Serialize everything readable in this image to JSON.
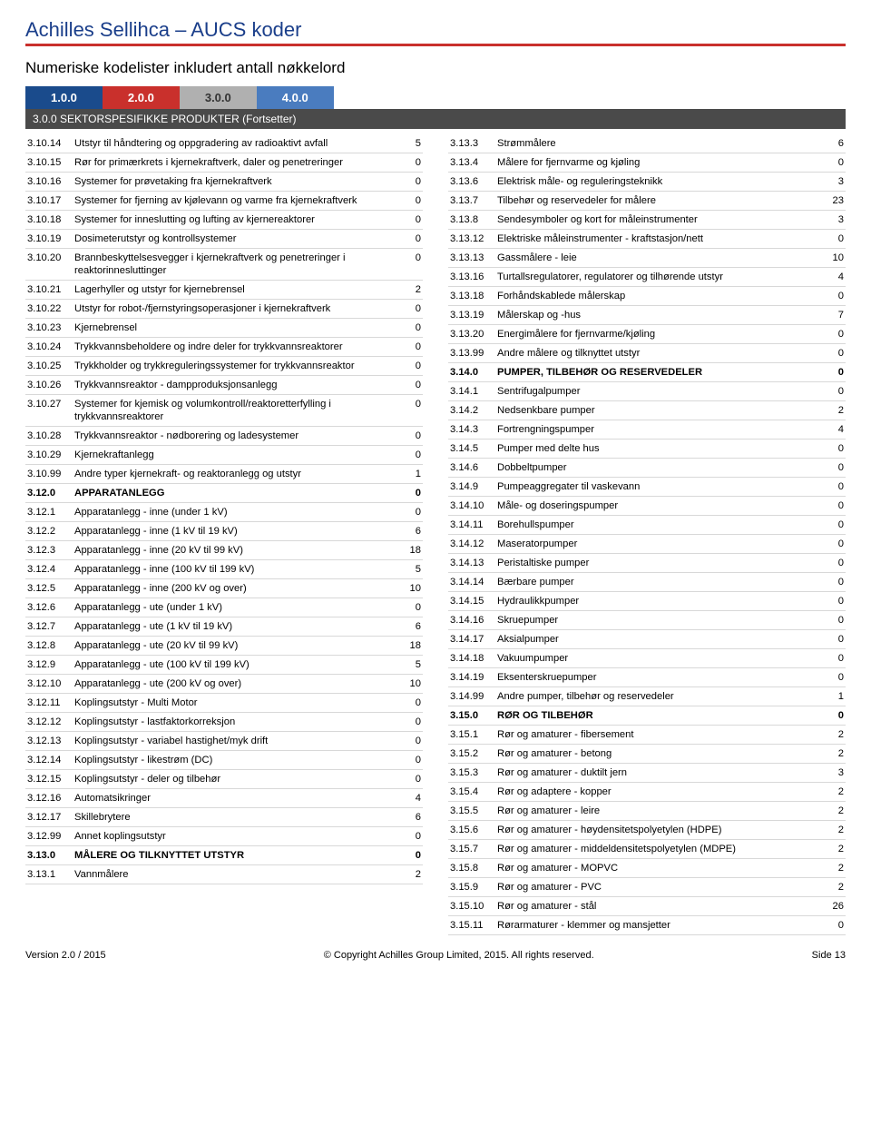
{
  "header": {
    "title": "Achilles Sellihca – AUCS koder",
    "subtitle": "Numeriske kodelister inkludert antall nøkkelord"
  },
  "tabs": [
    "1.0.0",
    "2.0.0",
    "3.0.0",
    "4.0.0"
  ],
  "section_header": "3.0.0 SEKTORSPESIFIKKE PRODUKTER (Fortsetter)",
  "left": [
    {
      "code": "3.10.14",
      "desc": "Utstyr til håndtering og oppgradering av radioaktivt avfall",
      "n": "5"
    },
    {
      "code": "3.10.15",
      "desc": "Rør for primærkrets i kjernekraftverk, daler og penetreringer",
      "n": "0"
    },
    {
      "code": "3.10.16",
      "desc": "Systemer for prøvetaking fra kjernekraftverk",
      "n": "0"
    },
    {
      "code": "3.10.17",
      "desc": "Systemer for fjerning av kjølevann og varme fra kjernekraftverk",
      "n": "0"
    },
    {
      "code": "3.10.18",
      "desc": "Systemer for inneslutting og lufting av kjernereaktorer",
      "n": "0"
    },
    {
      "code": "3.10.19",
      "desc": "Dosimeterutstyr og kontrollsystemer",
      "n": "0"
    },
    {
      "code": "3.10.20",
      "desc": "Brannbeskyttelsesvegger i kjernekraftverk og penetreringer i reaktorinnesluttinger",
      "n": "0"
    },
    {
      "code": "3.10.21",
      "desc": "Lagerhyller og utstyr for kjernebrensel",
      "n": "2"
    },
    {
      "code": "3.10.22",
      "desc": "Utstyr for robot-/fjernstyringsoperasjoner i kjernekraftverk",
      "n": "0"
    },
    {
      "code": "3.10.23",
      "desc": "Kjernebrensel",
      "n": "0"
    },
    {
      "code": "3.10.24",
      "desc": "Trykkvannsbeholdere og indre deler for trykkvannsreaktorer",
      "n": "0"
    },
    {
      "code": "3.10.25",
      "desc": "Trykkholder og trykkreguleringssystemer for trykkvannsreaktor",
      "n": "0"
    },
    {
      "code": "3.10.26",
      "desc": "Trykkvannsreaktor - dampproduksjonsanlegg",
      "n": "0"
    },
    {
      "code": "3.10.27",
      "desc": "Systemer for kjemisk og volumkontroll/reaktoretterfylling i trykkvannsreaktorer",
      "n": "0"
    },
    {
      "code": "3.10.28",
      "desc": "Trykkvannsreaktor - nødborering og ladesystemer",
      "n": "0"
    },
    {
      "code": "3.10.29",
      "desc": "Kjernekraftanlegg",
      "n": "0"
    },
    {
      "code": "3.10.99",
      "desc": "Andre typer kjernekraft- og reaktoranlegg og utstyr",
      "n": "1"
    },
    {
      "code": "3.12.0",
      "desc": "APPARATANLEGG",
      "n": "0",
      "bold": true
    },
    {
      "code": "3.12.1",
      "desc": "Apparatanlegg - inne (under 1 kV)",
      "n": "0"
    },
    {
      "code": "3.12.2",
      "desc": "Apparatanlegg - inne (1 kV til 19 kV)",
      "n": "6"
    },
    {
      "code": "3.12.3",
      "desc": "Apparatanlegg - inne (20 kV til 99 kV)",
      "n": "18"
    },
    {
      "code": "3.12.4",
      "desc": "Apparatanlegg - inne (100 kV til 199 kV)",
      "n": "5"
    },
    {
      "code": "3.12.5",
      "desc": "Apparatanlegg - inne (200 kV og over)",
      "n": "10"
    },
    {
      "code": "3.12.6",
      "desc": "Apparatanlegg - ute (under 1 kV)",
      "n": "0"
    },
    {
      "code": "3.12.7",
      "desc": "Apparatanlegg - ute (1 kV til 19 kV)",
      "n": "6"
    },
    {
      "code": "3.12.8",
      "desc": "Apparatanlegg - ute (20 kV til 99 kV)",
      "n": "18"
    },
    {
      "code": "3.12.9",
      "desc": "Apparatanlegg - ute (100 kV til 199 kV)",
      "n": "5"
    },
    {
      "code": "3.12.10",
      "desc": "Apparatanlegg - ute (200 kV og over)",
      "n": "10"
    },
    {
      "code": "3.12.11",
      "desc": "Koplingsutstyr - Multi Motor",
      "n": "0"
    },
    {
      "code": "3.12.12",
      "desc": "Koplingsutstyr - lastfaktorkorreksjon",
      "n": "0"
    },
    {
      "code": "3.12.13",
      "desc": "Koplingsutstyr - variabel hastighet/myk drift",
      "n": "0"
    },
    {
      "code": "3.12.14",
      "desc": "Koplingsutstyr - likestrøm (DC)",
      "n": "0"
    },
    {
      "code": "3.12.15",
      "desc": "Koplingsutstyr - deler og tilbehør",
      "n": "0"
    },
    {
      "code": "3.12.16",
      "desc": "Automatsikringer",
      "n": "4"
    },
    {
      "code": "3.12.17",
      "desc": "Skillebrytere",
      "n": "6"
    },
    {
      "code": "3.12.99",
      "desc": "Annet koplingsutstyr",
      "n": "0"
    },
    {
      "code": "3.13.0",
      "desc": "MÅLERE OG TILKNYTTET UTSTYR",
      "n": "0",
      "bold": true
    },
    {
      "code": "3.13.1",
      "desc": "Vannmålere",
      "n": "2"
    }
  ],
  "right": [
    {
      "code": "3.13.3",
      "desc": "Strømmålere",
      "n": "6"
    },
    {
      "code": "3.13.4",
      "desc": "Målere for fjernvarme og kjøling",
      "n": "0"
    },
    {
      "code": "3.13.6",
      "desc": "Elektrisk måle- og reguleringsteknikk",
      "n": "3"
    },
    {
      "code": "3.13.7",
      "desc": "Tilbehør og reservedeler for målere",
      "n": "23"
    },
    {
      "code": "3.13.8",
      "desc": "Sendesymboler og kort for måleinstrumenter",
      "n": "3"
    },
    {
      "code": "3.13.12",
      "desc": "Elektriske måleinstrumenter - kraftstasjon/nett",
      "n": "0"
    },
    {
      "code": "3.13.13",
      "desc": "Gassmålere - leie",
      "n": "10"
    },
    {
      "code": "3.13.16",
      "desc": "Turtallsregulatorer, regulatorer og tilhørende utstyr",
      "n": "4"
    },
    {
      "code": "3.13.18",
      "desc": "Forhåndskablede målerskap",
      "n": "0"
    },
    {
      "code": "3.13.19",
      "desc": "Målerskap og -hus",
      "n": "7"
    },
    {
      "code": "3.13.20",
      "desc": "Energimålere for fjernvarme/kjøling",
      "n": "0"
    },
    {
      "code": "3.13.99",
      "desc": "Andre målere og tilknyttet utstyr",
      "n": "0"
    },
    {
      "code": "3.14.0",
      "desc": "PUMPER, TILBEHØR OG RESERVEDELER",
      "n": "0",
      "bold": true
    },
    {
      "code": "3.14.1",
      "desc": "Sentrifugalpumper",
      "n": "0"
    },
    {
      "code": "3.14.2",
      "desc": "Nedsenkbare pumper",
      "n": "2"
    },
    {
      "code": "3.14.3",
      "desc": "Fortrengningspumper",
      "n": "4"
    },
    {
      "code": "3.14.5",
      "desc": "Pumper med delte hus",
      "n": "0"
    },
    {
      "code": "3.14.6",
      "desc": "Dobbeltpumper",
      "n": "0"
    },
    {
      "code": "3.14.9",
      "desc": "Pumpeaggregater til vaskevann",
      "n": "0"
    },
    {
      "code": "3.14.10",
      "desc": "Måle- og doseringspumper",
      "n": "0"
    },
    {
      "code": "3.14.11",
      "desc": "Borehullspumper",
      "n": "0"
    },
    {
      "code": "3.14.12",
      "desc": "Maseratorpumper",
      "n": "0"
    },
    {
      "code": "3.14.13",
      "desc": "Peristaltiske pumper",
      "n": "0"
    },
    {
      "code": "3.14.14",
      "desc": "Bærbare pumper",
      "n": "0"
    },
    {
      "code": "3.14.15",
      "desc": "Hydraulikkpumper",
      "n": "0"
    },
    {
      "code": "3.14.16",
      "desc": "Skruepumper",
      "n": "0"
    },
    {
      "code": "3.14.17",
      "desc": "Aksialpumper",
      "n": "0"
    },
    {
      "code": "3.14.18",
      "desc": "Vakuumpumper",
      "n": "0"
    },
    {
      "code": "3.14.19",
      "desc": "Eksenterskruepumper",
      "n": "0"
    },
    {
      "code": "3.14.99",
      "desc": "Andre pumper, tilbehør og reservedeler",
      "n": "1"
    },
    {
      "code": "3.15.0",
      "desc": "RØR OG TILBEHØR",
      "n": "0",
      "bold": true
    },
    {
      "code": "3.15.1",
      "desc": "Rør og amaturer - fibersement",
      "n": "2"
    },
    {
      "code": "3.15.2",
      "desc": "Rør og amaturer - betong",
      "n": "2"
    },
    {
      "code": "3.15.3",
      "desc": "Rør og amaturer - duktilt jern",
      "n": "3"
    },
    {
      "code": "3.15.4",
      "desc": "Rør og adaptere - kopper",
      "n": "2"
    },
    {
      "code": "3.15.5",
      "desc": "Rør og amaturer - leire",
      "n": "2"
    },
    {
      "code": "3.15.6",
      "desc": "Rør og amaturer - høydensitetspolyetylen (HDPE)",
      "n": "2"
    },
    {
      "code": "3.15.7",
      "desc": "Rør og amaturer - middeldensitetspolyetylen (MDPE)",
      "n": "2"
    },
    {
      "code": "3.15.8",
      "desc": "Rør og amaturer - MOPVC",
      "n": "2"
    },
    {
      "code": "3.15.9",
      "desc": "Rør og amaturer - PVC",
      "n": "2"
    },
    {
      "code": "3.15.10",
      "desc": "Rør og amaturer - stål",
      "n": "26"
    },
    {
      "code": "3.15.11",
      "desc": "Rørarmaturer - klemmer og mansjetter",
      "n": "0"
    }
  ],
  "footer": {
    "left": "Version 2.0 / 2015",
    "center": "© Copyright Achilles Group Limited, 2015. All rights reserved.",
    "right": "Side 13"
  }
}
